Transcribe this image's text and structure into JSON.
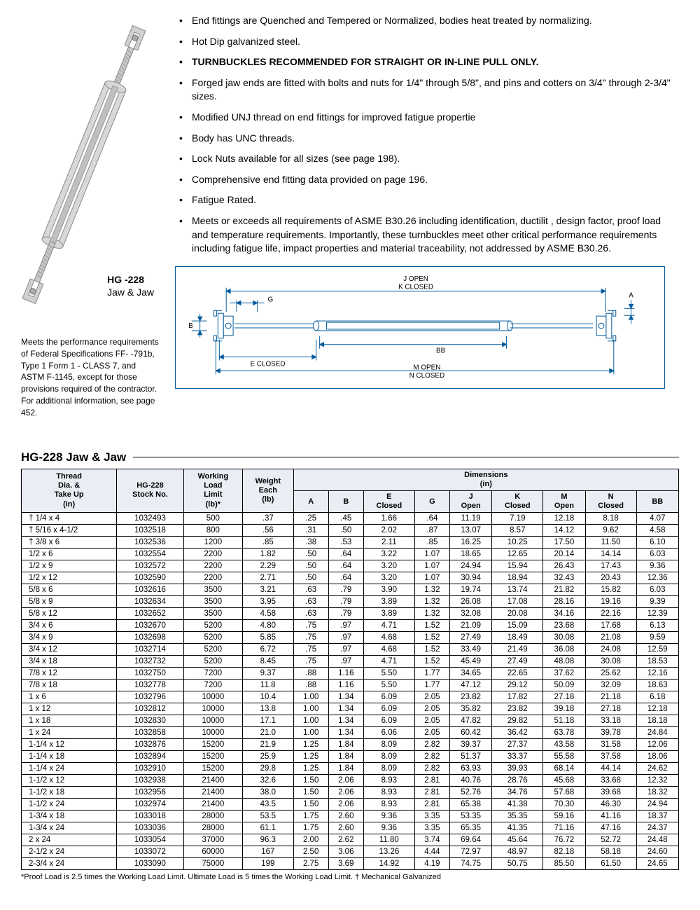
{
  "product": {
    "model": "HG -228",
    "name": "Jaw & Jaw"
  },
  "bullets": [
    {
      "text": "End fittings are Quenched and Tempered or Normalized, bodies heat treated by normalizing.",
      "bold": false
    },
    {
      "text": "Hot Dip galvanized steel.",
      "bold": false
    },
    {
      "text": "TURNBUCKLES RECOMMENDED FOR STRAIGHT OR IN-LINE PULL ONLY.",
      "bold": true
    },
    {
      "text": "Forged jaw ends are fitted with bolts and nuts for 1/4\" through 5/8\", and pins and cotters on 3/4\" through 2-3/4\" sizes.",
      "bold": false
    },
    {
      "text": "Modified UNJ thread on end fittings for improved fatigue propertie",
      "bold": false
    },
    {
      "text": "Body has UNC threads.",
      "bold": false
    },
    {
      "text": "Lock Nuts available for all sizes (see page 198).",
      "bold": false
    },
    {
      "text": "Comprehensive end fitting data provided on page 196.",
      "bold": false
    },
    {
      "text": "Fatigue Rated.",
      "bold": false
    },
    {
      "text": "Meets or exceeds all requirements of ASME B30.26 including identification, ductilit , design factor, proof load and temperature requirements.  Importantly, these turnbuckles meet other critical performance requirements including fatigue life, impact properties and material traceability, not addressed by ASME B30.26.",
      "bold": false
    }
  ],
  "spec_note": "Meets the performance requirements of Federal Specifications FF-  -791b, Type 1 Form 1 - CLASS 7, and ASTM F-1145, except for those provisions required of the contractor.  For additional information, see page 452.",
  "diagram_labels": {
    "j_open": "J  OPEN",
    "k_closed": "K  CLOSED",
    "g": "G",
    "a": "A",
    "b": "B",
    "bb": "BB",
    "e_closed": "E  CLOSED",
    "m_open": "M  OPEN",
    "n_closed": "N  CLOSED"
  },
  "table": {
    "title": "HG-228 Jaw & Jaw",
    "dim_header": "Dimensions\n(in)",
    "columns": [
      "Thread\nDia. &\nTake Up\n(in)",
      "HG-228\nStock No.",
      "Working\nLoad\nLimit\n(lb)*",
      "Weight\nEach\n(lb)",
      "A",
      "B",
      "E\nClosed",
      "G",
      "J\nOpen",
      "K\nClosed",
      "M\nOpen",
      "N\nClosed",
      "BB"
    ],
    "rows": [
      [
        "† 1/4 x 4",
        "1032493",
        "500",
        ".37",
        ".25",
        ".45",
        "1.66",
        ".64",
        "11.19",
        "7.19",
        "12.18",
        "8.18",
        "4.07"
      ],
      [
        "† 5/16 x 4-1/2",
        "1032518",
        "800",
        ".56",
        ".31",
        ".50",
        "2.02",
        ".87",
        "13.07",
        "8.57",
        "14.12",
        "9.62",
        "4.58"
      ],
      [
        "† 3/8 x 6",
        "1032536",
        "1200",
        ".85",
        ".38",
        ".53",
        "2.11",
        ".85",
        "16.25",
        "10.25",
        "17.50",
        "11.50",
        "6.10"
      ],
      [
        "1/2 x 6",
        "1032554",
        "2200",
        "1.82",
        ".50",
        ".64",
        "3.22",
        "1.07",
        "18.65",
        "12.65",
        "20.14",
        "14.14",
        "6.03"
      ],
      [
        "1/2 x 9",
        "1032572",
        "2200",
        "2.29",
        ".50",
        ".64",
        "3.20",
        "1.07",
        "24.94",
        "15.94",
        "26.43",
        "17.43",
        "9.36"
      ],
      [
        "1/2 x 12",
        "1032590",
        "2200",
        "2.71",
        ".50",
        ".64",
        "3.20",
        "1.07",
        "30.94",
        "18.94",
        "32.43",
        "20.43",
        "12.36"
      ],
      [
        "5/8 x 6",
        "1032616",
        "3500",
        "3.21",
        ".63",
        ".79",
        "3.90",
        "1.32",
        "19.74",
        "13.74",
        "21.82",
        "15.82",
        "6.03"
      ],
      [
        "5/8 x 9",
        "1032634",
        "3500",
        "3.95",
        ".63",
        ".79",
        "3.89",
        "1.32",
        "26.08",
        "17.08",
        "28.16",
        "19.16",
        "9.39"
      ],
      [
        "5/8 x 12",
        "1032652",
        "3500",
        "4.58",
        ".63",
        ".79",
        "3.89",
        "1.32",
        "32.08",
        "20.08",
        "34.16",
        "22.16",
        "12.39"
      ],
      [
        "3/4 x 6",
        "1032670",
        "5200",
        "4.80",
        ".75",
        ".97",
        "4.71",
        "1.52",
        "21.09",
        "15.09",
        "23.68",
        "17.68",
        "6.13"
      ],
      [
        "3/4 x 9",
        "1032698",
        "5200",
        "5.85",
        ".75",
        ".97",
        "4.68",
        "1.52",
        "27.49",
        "18.49",
        "30.08",
        "21.08",
        "9.59"
      ],
      [
        "3/4 x 12",
        "1032714",
        "5200",
        "6.72",
        ".75",
        ".97",
        "4.68",
        "1.52",
        "33.49",
        "21.49",
        "36.08",
        "24.08",
        "12.59"
      ],
      [
        "3/4 x 18",
        "1032732",
        "5200",
        "8.45",
        ".75",
        ".97",
        "4.71",
        "1.52",
        "45.49",
        "27.49",
        "48.08",
        "30.08",
        "18.53"
      ],
      [
        "7/8 x 12",
        "1032750",
        "7200",
        "9.37",
        ".88",
        "1.16",
        "5.50",
        "1.77",
        "34.65",
        "22.65",
        "37.62",
        "25.62",
        "12.16"
      ],
      [
        "7/8 x 18",
        "1032778",
        "7200",
        "11.8",
        ".88",
        "1.16",
        "5.50",
        "1.77",
        "47.12",
        "29.12",
        "50.09",
        "32.09",
        "18.63"
      ],
      [
        "1 x 6",
        "1032796",
        "10000",
        "10.4",
        "1.00",
        "1.34",
        "6.09",
        "2.05",
        "23.82",
        "17.82",
        "27.18",
        "21.18",
        "6.18"
      ],
      [
        "1 x 12",
        "1032812",
        "10000",
        "13.8",
        "1.00",
        "1.34",
        "6.09",
        "2.05",
        "35.82",
        "23.82",
        "39.18",
        "27.18",
        "12.18"
      ],
      [
        "1 x 18",
        "1032830",
        "10000",
        "17.1",
        "1.00",
        "1.34",
        "6.09",
        "2.05",
        "47.82",
        "29.82",
        "51.18",
        "33.18",
        "18.18"
      ],
      [
        "1 x 24",
        "1032858",
        "10000",
        "21.0",
        "1.00",
        "1.34",
        "6.06",
        "2.05",
        "60.42",
        "36.42",
        "63.78",
        "39.78",
        "24.84"
      ],
      [
        "1-1/4 x 12",
        "1032876",
        "15200",
        "21.9",
        "1.25",
        "1.84",
        "8.09",
        "2.82",
        "39.37",
        "27.37",
        "43.58",
        "31.58",
        "12.06"
      ],
      [
        "1-1/4 x 18",
        "1032894",
        "15200",
        "25.9",
        "1.25",
        "1.84",
        "8.09",
        "2.82",
        "51.37",
        "33.37",
        "55.58",
        "37.58",
        "18.06"
      ],
      [
        "1-1/4 x 24",
        "1032910",
        "15200",
        "29.8",
        "1.25",
        "1.84",
        "8.09",
        "2.82",
        "63.93",
        "39.93",
        "68.14",
        "44.14",
        "24.62"
      ],
      [
        "1-1/2 x 12",
        "1032938",
        "21400",
        "32.6",
        "1.50",
        "2.06",
        "8.93",
        "2.81",
        "40.76",
        "28.76",
        "45.68",
        "33.68",
        "12.32"
      ],
      [
        "1-1/2 x 18",
        "1032956",
        "21400",
        "38.0",
        "1.50",
        "2.06",
        "8.93",
        "2.81",
        "52.76",
        "34.76",
        "57.68",
        "39.68",
        "18.32"
      ],
      [
        "1-1/2 x 24",
        "1032974",
        "21400",
        "43.5",
        "1.50",
        "2.06",
        "8.93",
        "2.81",
        "65.38",
        "41.38",
        "70.30",
        "46.30",
        "24.94"
      ],
      [
        "1-3/4 x 18",
        "1033018",
        "28000",
        "53.5",
        "1.75",
        "2.60",
        "9.36",
        "3.35",
        "53.35",
        "35.35",
        "59.16",
        "41.16",
        "18.37"
      ],
      [
        "1-3/4 x 24",
        "1033036",
        "28000",
        "61.1",
        "1.75",
        "2.60",
        "9.36",
        "3.35",
        "65.35",
        "41.35",
        "71.16",
        "47.16",
        "24.37"
      ],
      [
        "2 x 24",
        "1033054",
        "37000",
        "96.3",
        "2.00",
        "2.62",
        "11.80",
        "3.74",
        "69.64",
        "45.64",
        "76.72",
        "52.72",
        "24.48"
      ],
      [
        "2-1/2 x 24",
        "1033072",
        "60000",
        "167",
        "2.50",
        "3.06",
        "13.26",
        "4.44",
        "72.97",
        "48.97",
        "82.18",
        "58.18",
        "24.60"
      ],
      [
        "2-3/4 x 24",
        "1033090",
        "75000",
        "199",
        "2.75",
        "3.69",
        "14.92",
        "4.19",
        "74.75",
        "50.75",
        "85.50",
        "61.50",
        "24.65"
      ]
    ]
  },
  "footnote": "*Proof Load is 2.5 times the Working Load Limit. Ultimate Load is 5 times the Working Load Limit. † Mechanical Galvanized",
  "colors": {
    "diagram_border": "#005a9c",
    "header_bg": "#e8eef4"
  }
}
